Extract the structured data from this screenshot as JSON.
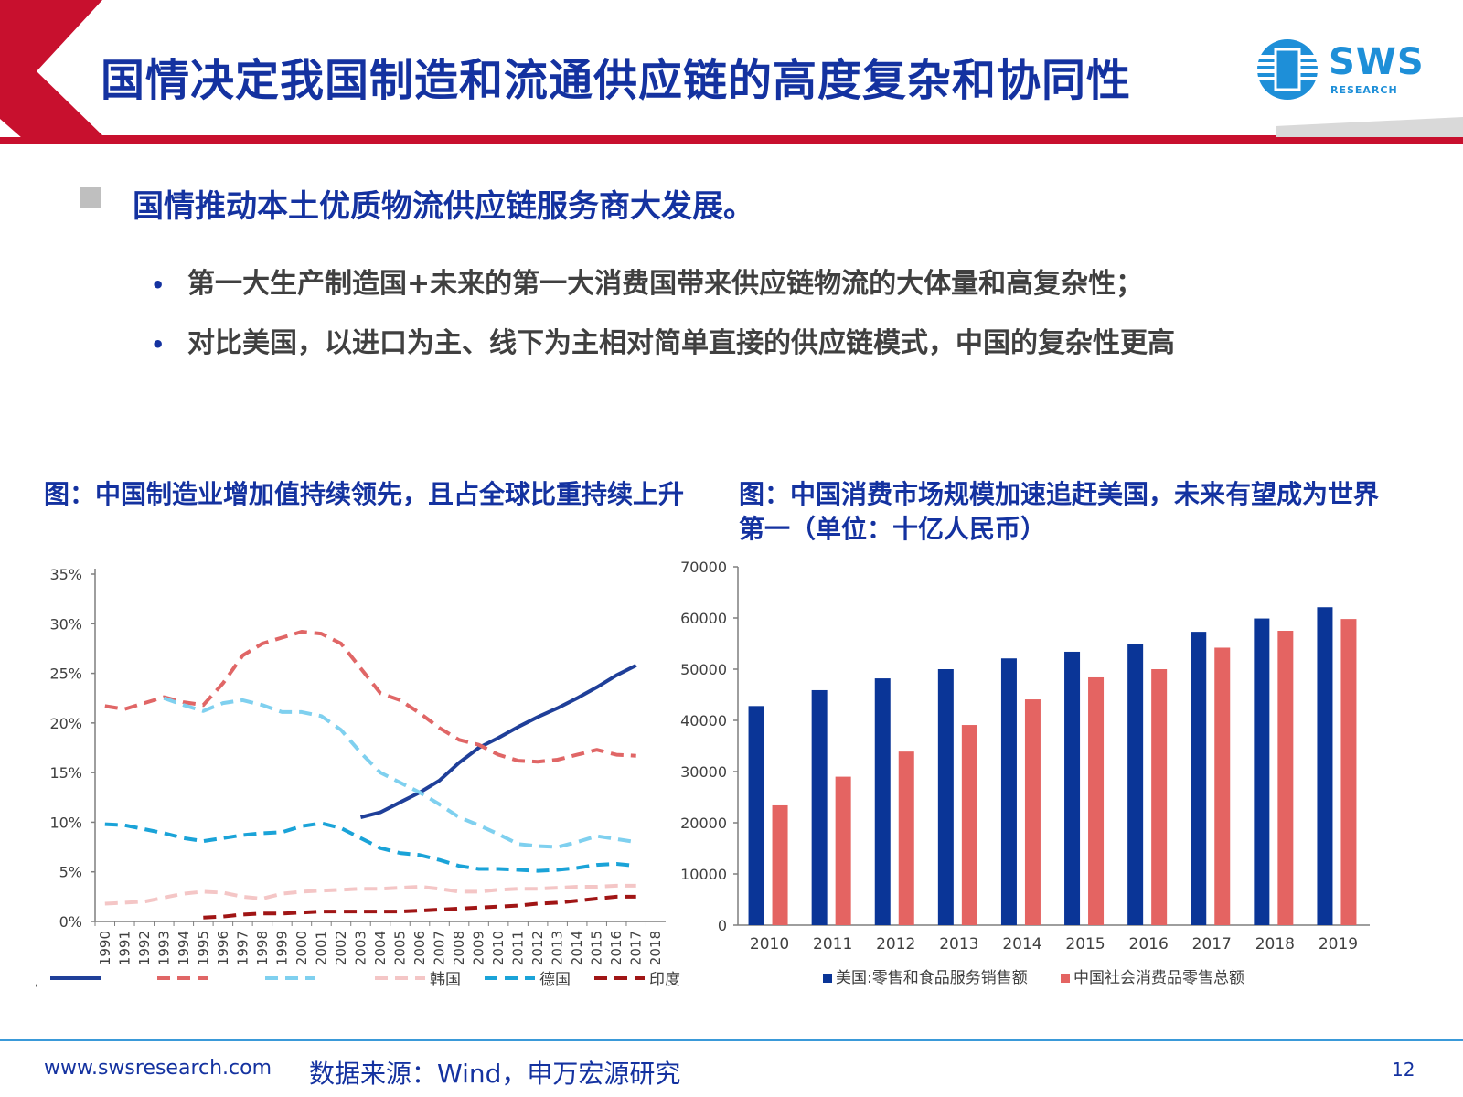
{
  "header": {
    "title": "国情决定我国制造和流通供应链的高度复杂和协同性",
    "logo_text": "SWS",
    "logo_sub": "RESEARCH"
  },
  "main_point": "国情推动本土优质物流供应链服务商大发展。",
  "sub_points": [
    "第一大生产制造国+未来的第一大消费国带来供应链物流的大体量和高复杂性；",
    "对比美国，以进口为主、线下为主相对简单直接的供应链模式，中国的复杂性更高"
  ],
  "colors": {
    "brand_blue": "#1432a0",
    "header_red": "#c8102e",
    "us_bar": "#0a3597",
    "china_bar": "#e46462"
  },
  "chart_data": [
    {
      "type": "line",
      "title": "图：中国制造业增加值持续领先，且占全球比重持续上升",
      "x": [
        "1990",
        "1991",
        "1992",
        "1993",
        "1994",
        "1995",
        "1996",
        "1997",
        "1998",
        "1999",
        "2000",
        "2001",
        "2002",
        "2003",
        "2004",
        "2005",
        "2006",
        "2007",
        "2008",
        "2009",
        "2010",
        "2011",
        "2012",
        "2013",
        "2014",
        "2015",
        "2016",
        "2017",
        "2018"
      ],
      "yticks": [
        "0%",
        "5%",
        "10%",
        "15%",
        "20%",
        "25%",
        "30%",
        "35%"
      ],
      "ylim": [
        0,
        35
      ],
      "series": [
        {
          "name": "",
          "color": "#1f3f99",
          "dash": "solid",
          "values": [
            null,
            null,
            null,
            null,
            null,
            null,
            null,
            null,
            null,
            null,
            null,
            null,
            null,
            10.5,
            11.0,
            12.0,
            13.0,
            14.2,
            16.0,
            17.5,
            18.5,
            19.6,
            20.6,
            21.5,
            22.5,
            23.6,
            24.8,
            25.8,
            null
          ]
        },
        {
          "name": "",
          "color": "#e06666",
          "dash": "long",
          "values": [
            21.7,
            21.4,
            22.0,
            22.6,
            22.1,
            21.8,
            24.0,
            26.8,
            28.0,
            28.6,
            29.2,
            29.0,
            28.0,
            25.5,
            23.0,
            22.3,
            21.0,
            19.5,
            18.3,
            17.8,
            16.8,
            16.2,
            16.1,
            16.3,
            16.8,
            17.3,
            16.8,
            16.7,
            null
          ]
        },
        {
          "name": "",
          "color": "#7fd0ef",
          "dash": "long",
          "values": [
            null,
            null,
            null,
            22.5,
            21.8,
            21.2,
            22.0,
            22.3,
            21.8,
            21.1,
            21.1,
            20.7,
            19.3,
            17.0,
            15.0,
            14.0,
            13.0,
            11.8,
            10.5,
            9.7,
            8.8,
            7.8,
            7.6,
            7.5,
            8.0,
            8.6,
            8.3,
            8.0,
            null
          ]
        },
        {
          "name": "韩国",
          "color": "#f4c6c6",
          "dash": "long",
          "values": [
            1.8,
            1.9,
            2.0,
            2.4,
            2.8,
            3.0,
            2.9,
            2.5,
            2.3,
            2.8,
            3.0,
            3.1,
            3.2,
            3.3,
            3.3,
            3.4,
            3.5,
            3.3,
            3.0,
            3.0,
            3.2,
            3.3,
            3.3,
            3.4,
            3.5,
            3.5,
            3.6,
            3.6,
            null
          ]
        },
        {
          "name": "德国",
          "color": "#1aa3d8",
          "dash": "long",
          "values": [
            9.8,
            9.7,
            9.3,
            8.9,
            8.4,
            8.1,
            8.4,
            8.7,
            8.9,
            9.0,
            9.6,
            9.9,
            9.4,
            8.4,
            7.4,
            6.9,
            6.7,
            6.2,
            5.6,
            5.3,
            5.3,
            5.2,
            5.1,
            5.2,
            5.4,
            5.7,
            5.8,
            5.6,
            null
          ]
        },
        {
          "name": "印度",
          "color": "#a01515",
          "dash": "long",
          "values": [
            null,
            null,
            null,
            null,
            null,
            0.4,
            0.5,
            0.7,
            0.8,
            0.8,
            0.9,
            1.0,
            1.0,
            1.0,
            1.0,
            1.0,
            1.1,
            1.2,
            1.3,
            1.4,
            1.5,
            1.6,
            1.8,
            1.9,
            2.1,
            2.3,
            2.5,
            2.5,
            null
          ]
        }
      ]
    },
    {
      "type": "bar",
      "title": "图：中国消费市场规模加速追赶美国，未来有望成为世界第一（单位：十亿人民币）",
      "categories": [
        "2010",
        "2011",
        "2012",
        "2013",
        "2014",
        "2015",
        "2016",
        "2017",
        "2018",
        "2019"
      ],
      "yticks": [
        "0",
        "10000",
        "20000",
        "30000",
        "40000",
        "50000",
        "60000",
        "70000"
      ],
      "ylim": [
        0,
        70000
      ],
      "series": [
        {
          "name": "美国:零售和食品服务销售额",
          "color": "#0a3597",
          "values": [
            42800,
            45900,
            48200,
            50000,
            52100,
            53400,
            55000,
            57300,
            59900,
            62100
          ]
        },
        {
          "name": "中国社会消费品零售总额",
          "color": "#e46462",
          "values": [
            23400,
            29000,
            33900,
            39100,
            44100,
            48400,
            50000,
            54200,
            57500,
            59800
          ]
        }
      ]
    }
  ],
  "footer": {
    "url": "www.swsresearch.com",
    "source": "数据来源：Wind，申万宏源研究",
    "page": "12",
    "stray_mark": ","
  }
}
